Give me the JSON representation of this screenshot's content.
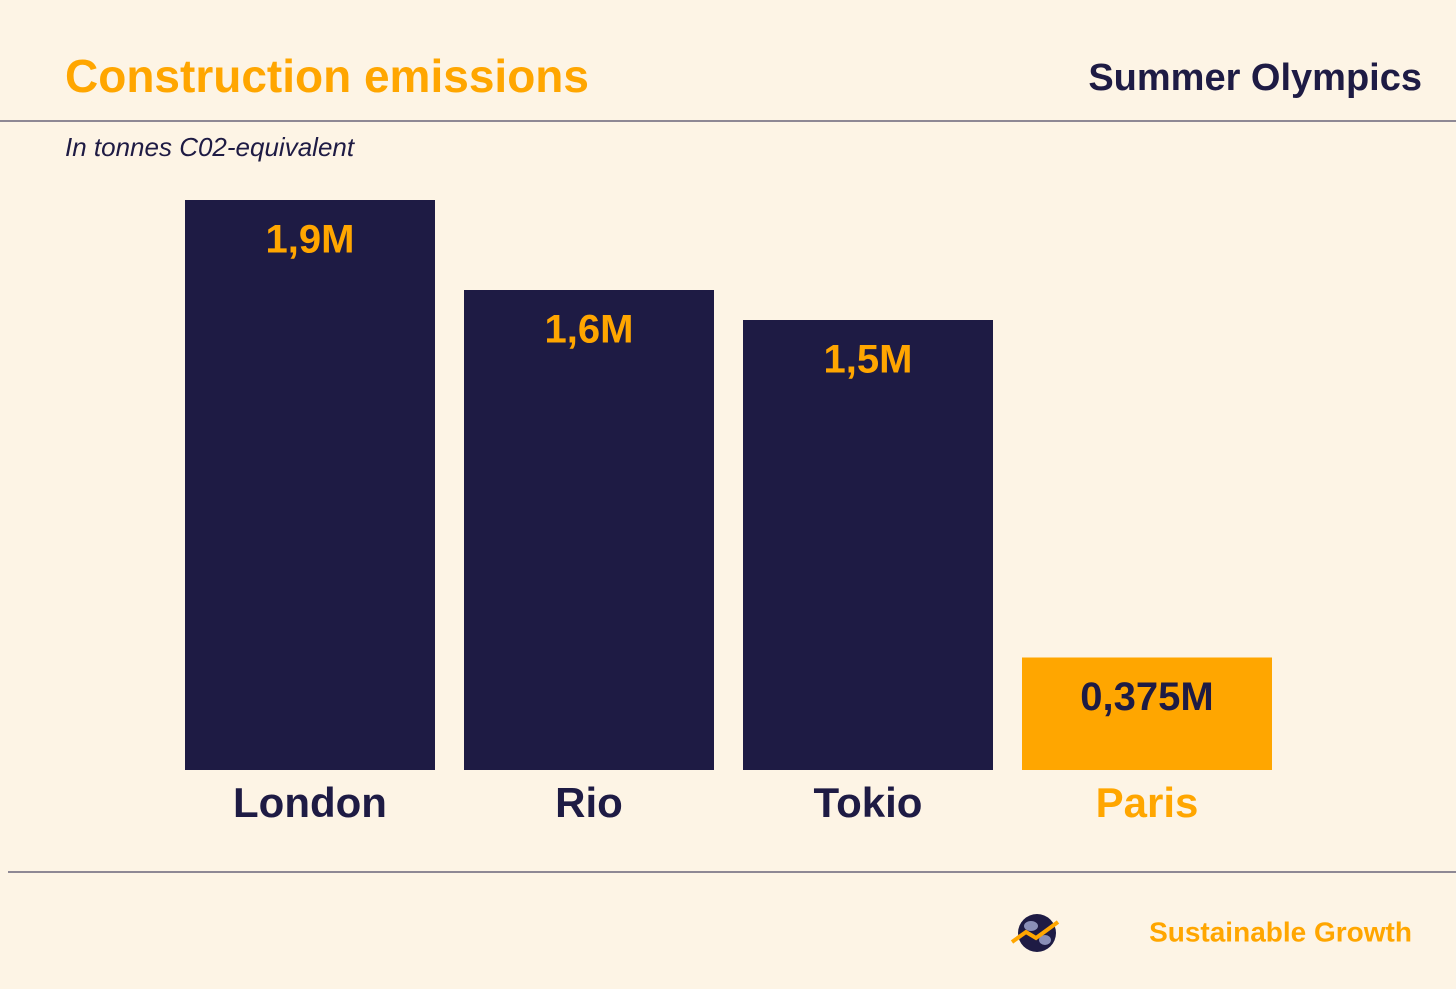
{
  "chart_data": {
    "type": "bar",
    "title": "Construction emissions",
    "header_right": "Summer Olympics",
    "y_label": "In tonnes C02-equivalent",
    "brand": "Sustainable Growth",
    "categories": [
      "London",
      "Rio",
      "Tokio",
      "Paris"
    ],
    "values": [
      1900000,
      1600000,
      1500000,
      375000
    ],
    "value_labels": [
      "1,9M",
      "1,6M",
      "1,5M",
      "0,375M"
    ],
    "colors": [
      "#1e1b44",
      "#1e1b44",
      "#1e1b44",
      "#ffa600"
    ],
    "ylim": [
      0,
      1900000
    ]
  }
}
